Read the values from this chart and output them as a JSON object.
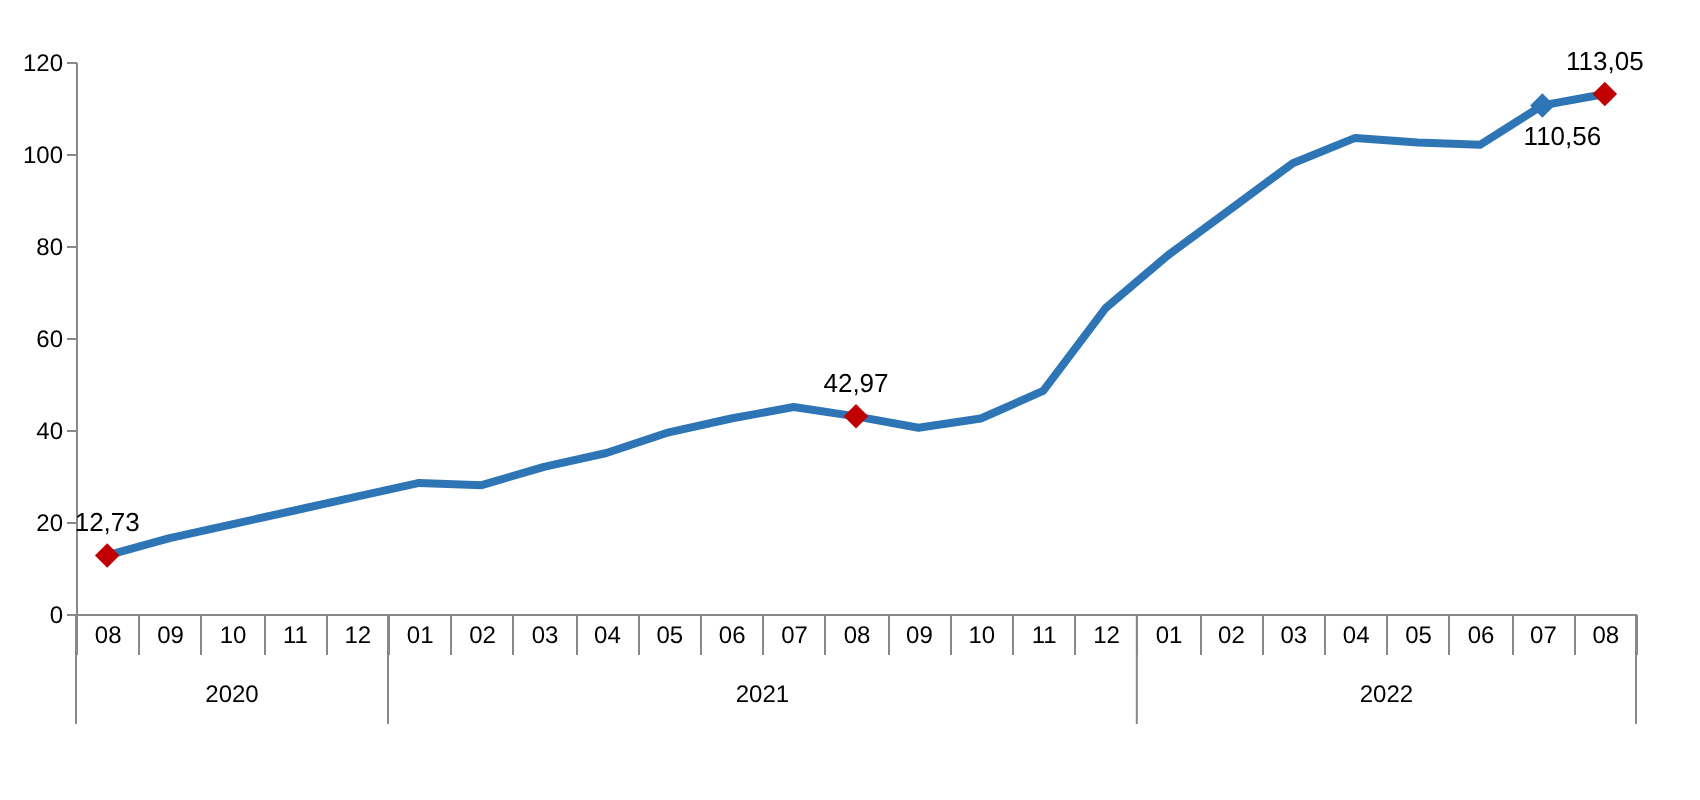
{
  "chart_data": {
    "type": "line",
    "categories": [
      "08",
      "09",
      "10",
      "11",
      "12",
      "01",
      "02",
      "03",
      "04",
      "05",
      "06",
      "07",
      "08",
      "09",
      "10",
      "11",
      "12",
      "01",
      "02",
      "03",
      "04",
      "05",
      "06",
      "07",
      "08"
    ],
    "annotations": [
      "2020",
      "2021",
      "2022"
    ],
    "series": [
      {
        "color": "#2e75b6",
        "values": [
          12.73,
          16.5,
          19.5,
          22.5,
          25.5,
          28.5,
          28,
          32,
          35,
          39.5,
          42.5,
          45,
          42.97,
          40.5,
          42.5,
          48.5,
          66.5,
          78,
          88,
          98,
          103.5,
          102.5,
          102,
          110.56,
          113.05
        ]
      },
      {
        "type": "scatter",
        "marker": "diamond",
        "colors": [
          "#c00000",
          null,
          null,
          null,
          null,
          null,
          null,
          null,
          null,
          null,
          null,
          null,
          "#c00000",
          null,
          null,
          null,
          null,
          null,
          null,
          null,
          null,
          null,
          null,
          "#2e75b6",
          "#c00000"
        ],
        "values": [
          12.73,
          null,
          null,
          null,
          null,
          null,
          null,
          null,
          null,
          null,
          null,
          null,
          42.97,
          null,
          null,
          null,
          null,
          null,
          null,
          null,
          null,
          null,
          null,
          110.56,
          113.05
        ],
        "value_labels": [
          "12,73",
          null,
          null,
          null,
          null,
          null,
          null,
          null,
          null,
          null,
          null,
          null,
          "42,97",
          null,
          null,
          null,
          null,
          null,
          null,
          null,
          null,
          null,
          null,
          "110,56",
          "113,05"
        ]
      }
    ],
    "ylim": [
      0,
      120
    ],
    "yticks": [
      0,
      20,
      40,
      60,
      80,
      100,
      120
    ]
  }
}
